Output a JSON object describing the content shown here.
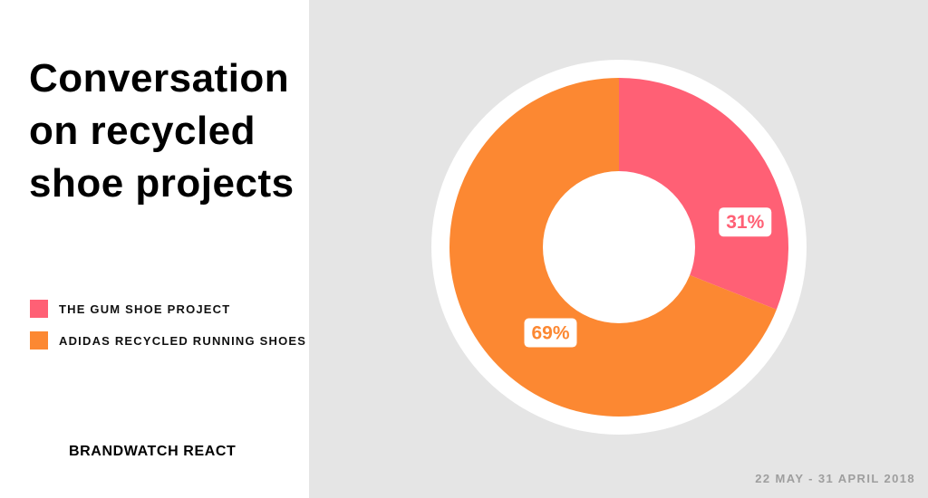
{
  "title": "Conversation on recycled shoe projects",
  "brand": "BRANDWATCH REACT",
  "date_range": "22 MAY - 31 APRIL 2018",
  "colors": {
    "pink": "#ff6075",
    "orange": "#fc8832",
    "panel_bg": "#e5e5e5"
  },
  "chart_data": {
    "type": "pie",
    "variant": "donut",
    "categories": [
      "THE GUM SHOE PROJECT",
      "ADIDAS RECYCLED RUNNING SHOES"
    ],
    "values": [
      31,
      69
    ],
    "unit": "%",
    "value_labels": [
      "31%",
      "69%"
    ],
    "colors": [
      "#ff6075",
      "#fc8832"
    ],
    "start_angle": "12 o'clock, clockwise",
    "legend_position": "left",
    "title": "Conversation on recycled shoe projects"
  }
}
